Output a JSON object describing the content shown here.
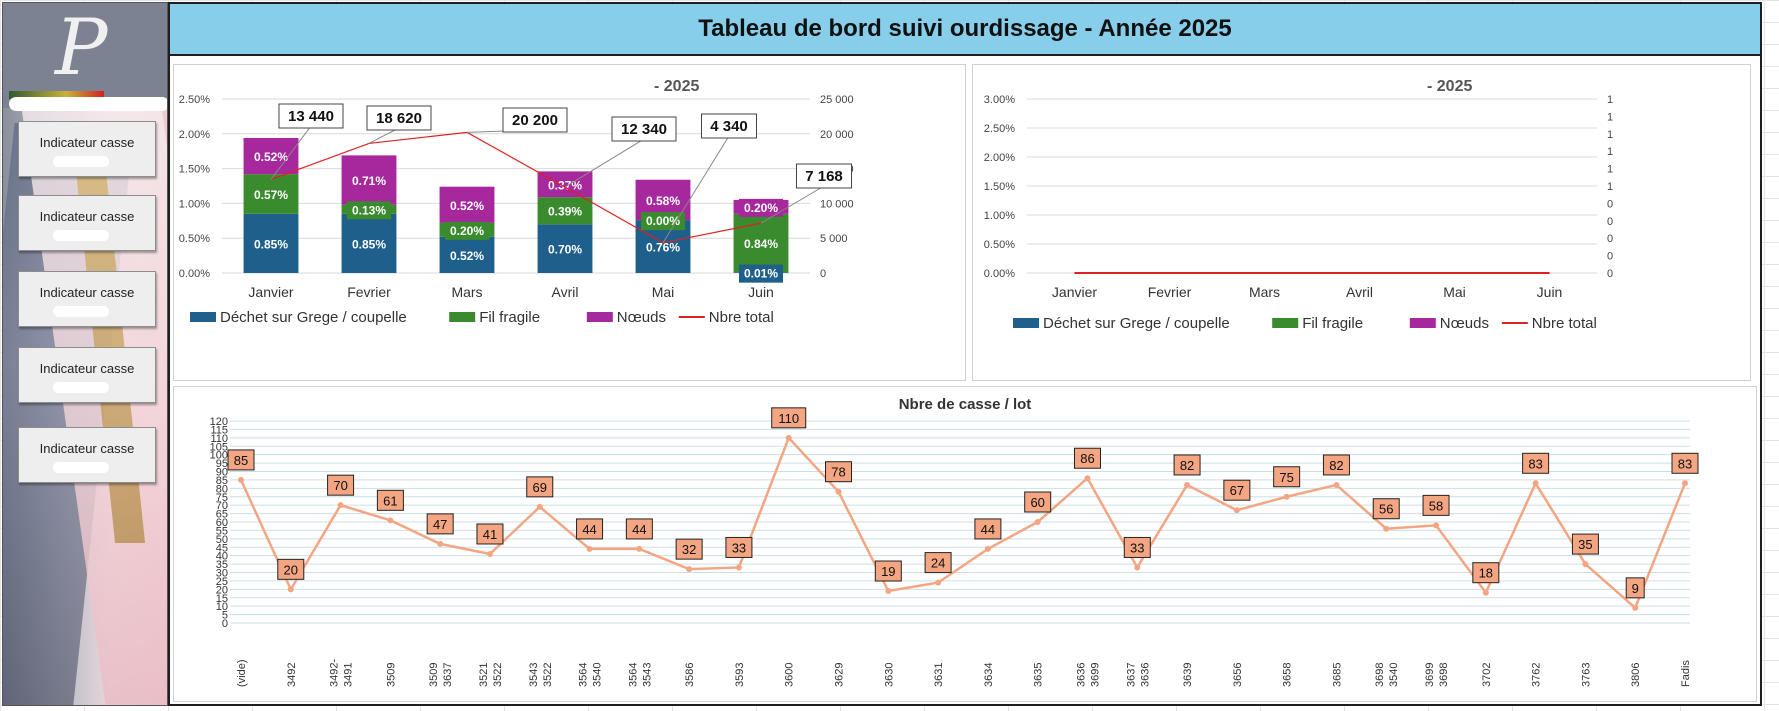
{
  "header": {
    "title": "Tableau de bord suivi ourdissage - Année 2025"
  },
  "sidebar": {
    "logo_letter": "P",
    "buttons": [
      {
        "label": "Indicateur casse"
      },
      {
        "label": "Indicateur casse"
      },
      {
        "label": "Indicateur casse"
      },
      {
        "label": "Indicateur casse"
      },
      {
        "label": "Indicateur casse"
      }
    ]
  },
  "colors": {
    "dechet": "#1f5f8b",
    "fil": "#3a8a2e",
    "noeuds": "#a6289c",
    "total_line": "#e02020",
    "lot_line": "#f4a582",
    "lot_label_bg": "#f4a582",
    "title_bg": "#87ceeb"
  },
  "chart_data": [
    {
      "type": "bar",
      "title": "- 2025",
      "categories": [
        "Janvier",
        "Fevrier",
        "Mars",
        "Avril",
        "Mai",
        "Juin"
      ],
      "series": [
        {
          "name": "Déchet sur Grege / coupelle",
          "values": [
            0.85,
            0.85,
            0.52,
            0.7,
            0.76,
            0.01
          ],
          "labels": [
            "0.85%",
            "0.85%",
            "0.52%",
            "0.70%",
            "0.76%",
            "0.01%"
          ]
        },
        {
          "name": "Fil fragile",
          "values": [
            0.57,
            0.13,
            0.2,
            0.39,
            0.0,
            0.84
          ],
          "labels": [
            "0.57%",
            "0.13%",
            "0.20%",
            "0.39%",
            "0.00%",
            "0.84%"
          ]
        },
        {
          "name": "Nœuds",
          "values": [
            0.52,
            0.71,
            0.52,
            0.37,
            0.58,
            0.2
          ],
          "labels": [
            "0.52%",
            "0.71%",
            "0.52%",
            "0.37%",
            "0.58%",
            "0.20%"
          ]
        }
      ],
      "line": {
        "name": "Nbre total",
        "values": [
          13440,
          18620,
          20200,
          12340,
          4340,
          7168
        ],
        "labels": [
          "13 440",
          "18 620",
          "20 200",
          "12 340",
          "4 340",
          "7 168"
        ]
      },
      "y_ticks": [
        "0.00%",
        "0.50%",
        "1.00%",
        "1.50%",
        "2.00%",
        "2.50%"
      ],
      "ylim": [
        0,
        2.5
      ],
      "y2_ticks": [
        "0",
        "5 000",
        "10 000",
        "15 000",
        "20 000",
        "25 000"
      ],
      "y2lim": [
        0,
        25000
      ],
      "legend_position": "bottom"
    },
    {
      "type": "bar",
      "title": "- 2025",
      "categories": [
        "Janvier",
        "Fevrier",
        "Mars",
        "Avril",
        "Mai",
        "Juin"
      ],
      "series": [
        {
          "name": "Déchet sur Grege / coupelle",
          "values": [
            0,
            0,
            0,
            0,
            0,
            0
          ]
        },
        {
          "name": "Fil fragile",
          "values": [
            0,
            0,
            0,
            0,
            0,
            0
          ]
        },
        {
          "name": "Nœuds",
          "values": [
            0,
            0,
            0,
            0,
            0,
            0
          ]
        }
      ],
      "line": {
        "name": "Nbre total",
        "values": [
          0,
          0,
          0,
          0,
          0,
          0
        ]
      },
      "y_ticks": [
        "0.00%",
        "0.50%",
        "1.00%",
        "1.50%",
        "2.00%",
        "2.50%",
        "3.00%"
      ],
      "ylim": [
        0,
        3
      ],
      "y2_ticks": [
        "0",
        "0",
        "0",
        "0",
        "0",
        "1",
        "1",
        "1",
        "1",
        "1",
        "1"
      ],
      "legend_position": "bottom"
    },
    {
      "type": "line",
      "title": "Nbre de casse / lot",
      "categories": [
        [
          "(vide)"
        ],
        [
          "3492"
        ],
        [
          "3492-",
          "3491"
        ],
        [
          "3509"
        ],
        [
          "3509",
          "3637"
        ],
        [
          "3521",
          "3522"
        ],
        [
          "3543",
          "3522"
        ],
        [
          "3564",
          "3540"
        ],
        [
          "3564",
          "3543"
        ],
        [
          "3586"
        ],
        [
          "3593"
        ],
        [
          "3600"
        ],
        [
          "3629"
        ],
        [
          "3630"
        ],
        [
          "3631"
        ],
        [
          "3634"
        ],
        [
          "3635"
        ],
        [
          "3636",
          "3699"
        ],
        [
          "3637",
          "3636"
        ],
        [
          "3639"
        ],
        [
          "3656"
        ],
        [
          "3658"
        ],
        [
          "3685"
        ],
        [
          "3698",
          "3540"
        ],
        [
          "3699",
          "3698"
        ],
        [
          "3702"
        ],
        [
          "3762"
        ],
        [
          "3763"
        ],
        [
          "3806"
        ],
        [
          "Fadis"
        ]
      ],
      "values": [
        85,
        20,
        70,
        61,
        47,
        41,
        69,
        44,
        44,
        32,
        33,
        110,
        78,
        19,
        24,
        44,
        60,
        86,
        33,
        82,
        67,
        75,
        82,
        56,
        58,
        18,
        83,
        35,
        9,
        83
      ],
      "label_values": [
        85,
        20,
        70,
        61,
        47,
        41,
        69,
        44,
        44,
        32,
        33,
        110,
        78,
        19,
        24,
        44,
        60,
        86,
        33,
        82,
        67,
        75,
        82,
        56,
        58,
        18,
        83,
        35,
        9,
        83
      ],
      "y_ticks": [
        "0",
        "5",
        "10",
        "15",
        "20",
        "25",
        "30",
        "35",
        "40",
        "45",
        "50",
        "55",
        "60",
        "65",
        "70",
        "75",
        "80",
        "85",
        "90",
        "95",
        "100",
        "105",
        "110",
        "115",
        "120"
      ],
      "ylim": [
        0,
        120
      ],
      "grid": true
    }
  ]
}
